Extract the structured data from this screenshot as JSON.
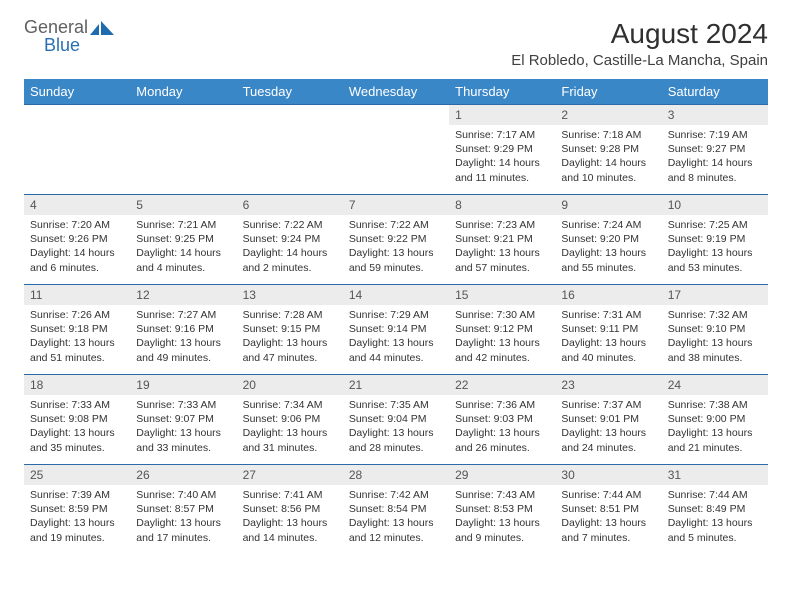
{
  "logo": {
    "text1": "General",
    "text2": "Blue",
    "graphic_fill": "#1f6bb0"
  },
  "title": "August 2024",
  "location": "El Robledo, Castille-La Mancha, Spain",
  "colors": {
    "header_bg": "#3a87c8",
    "header_fg": "#ffffff",
    "daynum_bg": "#ececec",
    "rule": "#2b6aa6",
    "text": "#333333"
  },
  "day_headers": [
    "Sunday",
    "Monday",
    "Tuesday",
    "Wednesday",
    "Thursday",
    "Friday",
    "Saturday"
  ],
  "weeks": [
    [
      {
        "n": "",
        "lines": []
      },
      {
        "n": "",
        "lines": []
      },
      {
        "n": "",
        "lines": []
      },
      {
        "n": "",
        "lines": []
      },
      {
        "n": "1",
        "lines": [
          "Sunrise: 7:17 AM",
          "Sunset: 9:29 PM",
          "Daylight: 14 hours and 11 minutes."
        ]
      },
      {
        "n": "2",
        "lines": [
          "Sunrise: 7:18 AM",
          "Sunset: 9:28 PM",
          "Daylight: 14 hours and 10 minutes."
        ]
      },
      {
        "n": "3",
        "lines": [
          "Sunrise: 7:19 AM",
          "Sunset: 9:27 PM",
          "Daylight: 14 hours and 8 minutes."
        ]
      }
    ],
    [
      {
        "n": "4",
        "lines": [
          "Sunrise: 7:20 AM",
          "Sunset: 9:26 PM",
          "Daylight: 14 hours and 6 minutes."
        ]
      },
      {
        "n": "5",
        "lines": [
          "Sunrise: 7:21 AM",
          "Sunset: 9:25 PM",
          "Daylight: 14 hours and 4 minutes."
        ]
      },
      {
        "n": "6",
        "lines": [
          "Sunrise: 7:22 AM",
          "Sunset: 9:24 PM",
          "Daylight: 14 hours and 2 minutes."
        ]
      },
      {
        "n": "7",
        "lines": [
          "Sunrise: 7:22 AM",
          "Sunset: 9:22 PM",
          "Daylight: 13 hours and 59 minutes."
        ]
      },
      {
        "n": "8",
        "lines": [
          "Sunrise: 7:23 AM",
          "Sunset: 9:21 PM",
          "Daylight: 13 hours and 57 minutes."
        ]
      },
      {
        "n": "9",
        "lines": [
          "Sunrise: 7:24 AM",
          "Sunset: 9:20 PM",
          "Daylight: 13 hours and 55 minutes."
        ]
      },
      {
        "n": "10",
        "lines": [
          "Sunrise: 7:25 AM",
          "Sunset: 9:19 PM",
          "Daylight: 13 hours and 53 minutes."
        ]
      }
    ],
    [
      {
        "n": "11",
        "lines": [
          "Sunrise: 7:26 AM",
          "Sunset: 9:18 PM",
          "Daylight: 13 hours and 51 minutes."
        ]
      },
      {
        "n": "12",
        "lines": [
          "Sunrise: 7:27 AM",
          "Sunset: 9:16 PM",
          "Daylight: 13 hours and 49 minutes."
        ]
      },
      {
        "n": "13",
        "lines": [
          "Sunrise: 7:28 AM",
          "Sunset: 9:15 PM",
          "Daylight: 13 hours and 47 minutes."
        ]
      },
      {
        "n": "14",
        "lines": [
          "Sunrise: 7:29 AM",
          "Sunset: 9:14 PM",
          "Daylight: 13 hours and 44 minutes."
        ]
      },
      {
        "n": "15",
        "lines": [
          "Sunrise: 7:30 AM",
          "Sunset: 9:12 PM",
          "Daylight: 13 hours and 42 minutes."
        ]
      },
      {
        "n": "16",
        "lines": [
          "Sunrise: 7:31 AM",
          "Sunset: 9:11 PM",
          "Daylight: 13 hours and 40 minutes."
        ]
      },
      {
        "n": "17",
        "lines": [
          "Sunrise: 7:32 AM",
          "Sunset: 9:10 PM",
          "Daylight: 13 hours and 38 minutes."
        ]
      }
    ],
    [
      {
        "n": "18",
        "lines": [
          "Sunrise: 7:33 AM",
          "Sunset: 9:08 PM",
          "Daylight: 13 hours and 35 minutes."
        ]
      },
      {
        "n": "19",
        "lines": [
          "Sunrise: 7:33 AM",
          "Sunset: 9:07 PM",
          "Daylight: 13 hours and 33 minutes."
        ]
      },
      {
        "n": "20",
        "lines": [
          "Sunrise: 7:34 AM",
          "Sunset: 9:06 PM",
          "Daylight: 13 hours and 31 minutes."
        ]
      },
      {
        "n": "21",
        "lines": [
          "Sunrise: 7:35 AM",
          "Sunset: 9:04 PM",
          "Daylight: 13 hours and 28 minutes."
        ]
      },
      {
        "n": "22",
        "lines": [
          "Sunrise: 7:36 AM",
          "Sunset: 9:03 PM",
          "Daylight: 13 hours and 26 minutes."
        ]
      },
      {
        "n": "23",
        "lines": [
          "Sunrise: 7:37 AM",
          "Sunset: 9:01 PM",
          "Daylight: 13 hours and 24 minutes."
        ]
      },
      {
        "n": "24",
        "lines": [
          "Sunrise: 7:38 AM",
          "Sunset: 9:00 PM",
          "Daylight: 13 hours and 21 minutes."
        ]
      }
    ],
    [
      {
        "n": "25",
        "lines": [
          "Sunrise: 7:39 AM",
          "Sunset: 8:59 PM",
          "Daylight: 13 hours and 19 minutes."
        ]
      },
      {
        "n": "26",
        "lines": [
          "Sunrise: 7:40 AM",
          "Sunset: 8:57 PM",
          "Daylight: 13 hours and 17 minutes."
        ]
      },
      {
        "n": "27",
        "lines": [
          "Sunrise: 7:41 AM",
          "Sunset: 8:56 PM",
          "Daylight: 13 hours and 14 minutes."
        ]
      },
      {
        "n": "28",
        "lines": [
          "Sunrise: 7:42 AM",
          "Sunset: 8:54 PM",
          "Daylight: 13 hours and 12 minutes."
        ]
      },
      {
        "n": "29",
        "lines": [
          "Sunrise: 7:43 AM",
          "Sunset: 8:53 PM",
          "Daylight: 13 hours and 9 minutes."
        ]
      },
      {
        "n": "30",
        "lines": [
          "Sunrise: 7:44 AM",
          "Sunset: 8:51 PM",
          "Daylight: 13 hours and 7 minutes."
        ]
      },
      {
        "n": "31",
        "lines": [
          "Sunrise: 7:44 AM",
          "Sunset: 8:49 PM",
          "Daylight: 13 hours and 5 minutes."
        ]
      }
    ]
  ]
}
